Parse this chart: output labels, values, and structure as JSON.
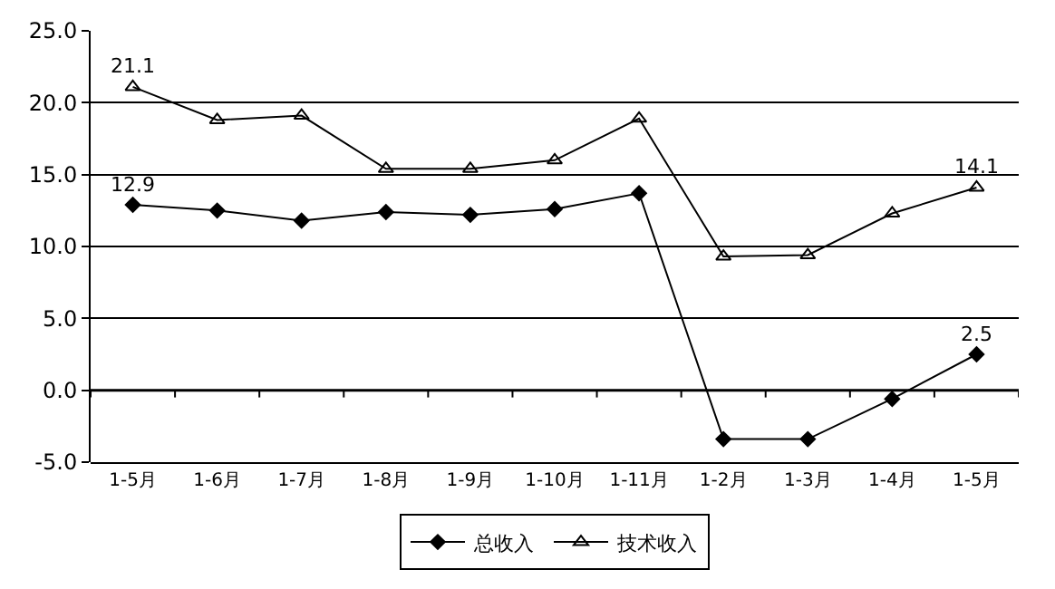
{
  "chart_data": {
    "type": "line",
    "categories": [
      "1-5月",
      "1-6月",
      "1-7月",
      "1-8月",
      "1-9月",
      "1-10月",
      "1-11月",
      "1-2月",
      "1-3月",
      "1-4月",
      "1-5月"
    ],
    "series": [
      {
        "name": "总收入",
        "color": "#000000",
        "marker": "diamond",
        "values": [
          12.9,
          12.5,
          11.8,
          12.4,
          12.2,
          12.6,
          13.7,
          -3.4,
          -3.4,
          -0.6,
          2.5
        ],
        "value_labels": [
          "12.9",
          null,
          null,
          null,
          null,
          null,
          null,
          null,
          null,
          null,
          "2.5"
        ]
      },
      {
        "name": "技术收入",
        "color": "#000000",
        "marker": "triangle",
        "values": [
          21.1,
          18.8,
          19.1,
          15.4,
          15.4,
          16.0,
          18.9,
          9.3,
          9.4,
          12.3,
          14.1
        ],
        "value_labels": [
          "21.1",
          null,
          null,
          null,
          null,
          null,
          null,
          null,
          null,
          null,
          "14.1"
        ]
      }
    ],
    "ylim": [
      -5,
      25
    ],
    "yticks": [
      {
        "value": -5,
        "label": "-5.0"
      },
      {
        "value": 0,
        "label": "0.0"
      },
      {
        "value": 5,
        "label": "5.0"
      },
      {
        "value": 10,
        "label": "10.0"
      },
      {
        "value": 15,
        "label": "15.0"
      },
      {
        "value": 20,
        "label": "20.0"
      },
      {
        "value": 25,
        "label": "25.0"
      }
    ],
    "grid": "y",
    "legend": "bottom",
    "line_style": "solid"
  }
}
